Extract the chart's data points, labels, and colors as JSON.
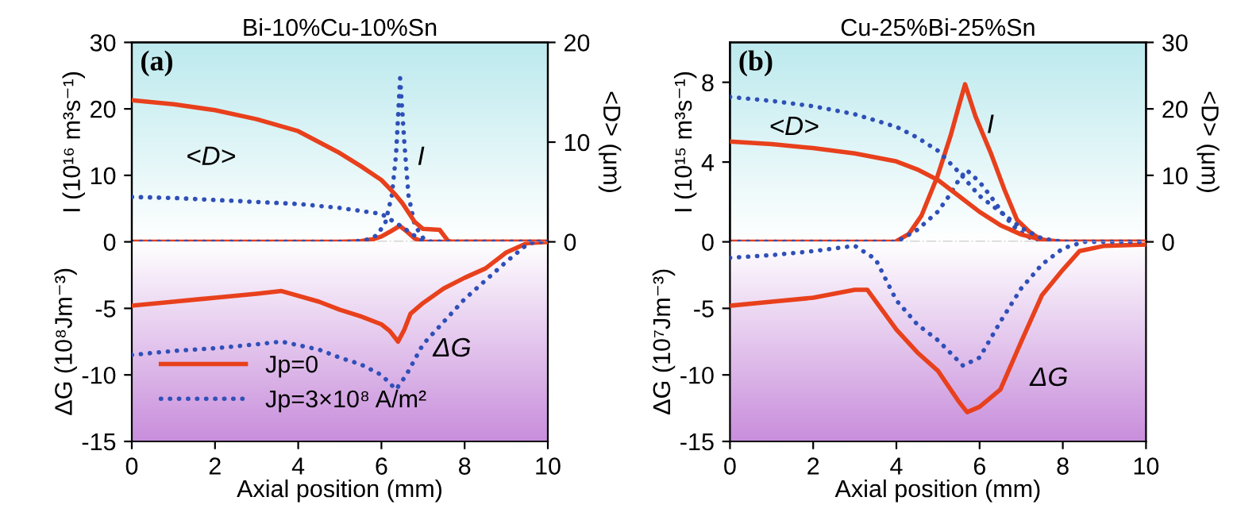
{
  "chart_data": [
    {
      "type": "line",
      "title": "Bi-10%Cu-10%Sn",
      "ylabel": "I (10¹⁶ m³s⁻¹)",
      "y2label": "<D> (μm)",
      "xlim": [
        0,
        10
      ],
      "ylim": [
        0,
        30
      ],
      "yticks": [
        0,
        10,
        20,
        30
      ],
      "y2lim": [
        0,
        20
      ],
      "y2ticks": [
        0,
        10,
        20
      ],
      "tick_labels": "y",
      "marker": "none",
      "ref_lines": [
        {
          "axis": "y",
          "value": 0,
          "color": "#555555"
        }
      ],
      "annotations": [
        "(a)",
        "<D>",
        "I"
      ],
      "series": [
        {
          "color": "#e8401c",
          "line_style": "solid",
          "x": [
            0,
            5.0,
            5.5,
            5.8,
            6.0,
            6.2,
            6.44,
            6.6,
            6.8,
            7.0,
            10
          ],
          "values": [
            0,
            0,
            0.1,
            0.4,
            0.8,
            1.5,
            2.4,
            1.6,
            0.5,
            0,
            0
          ]
        },
        {
          "color": "#2f4fb8",
          "line_style": "dotted",
          "x": [
            0,
            5.2,
            5.6,
            5.9,
            6.1,
            6.25,
            6.35,
            6.45,
            6.55,
            6.65,
            6.8,
            7.0,
            7.2,
            10
          ],
          "values": [
            0,
            0,
            0.2,
            1.0,
            3.0,
            7.0,
            13.0,
            24.6,
            15.0,
            7.0,
            2.5,
            0.6,
            0,
            0
          ]
        },
        {
          "color": "#e8401c",
          "line_style": "solid",
          "axis": "y2",
          "x": [
            0,
            1,
            2,
            3,
            4,
            5,
            5.5,
            6,
            6.3,
            6.5,
            6.8,
            7.0,
            7.4,
            7.6,
            7.7,
            10
          ],
          "values": [
            14.2,
            13.8,
            13.2,
            12.3,
            11.1,
            8.9,
            7.6,
            6.2,
            4.9,
            3.9,
            2.0,
            1.3,
            1.2,
            0.1,
            0,
            0
          ]
        },
        {
          "color": "#2f4fb8",
          "line_style": "dotted",
          "axis": "y2",
          "x": [
            0,
            1,
            2,
            3,
            4,
            5,
            5.5,
            6,
            6.5,
            6.8,
            7.0,
            10
          ],
          "values": [
            4.5,
            4.4,
            4.2,
            4.0,
            3.8,
            3.4,
            3.1,
            2.8,
            1.5,
            0.6,
            0,
            0
          ]
        }
      ]
    },
    {
      "type": "line",
      "xlabel": "Axial position (mm)",
      "ylabel": "ΔG (10⁸Jm⁻³)",
      "xlim": [
        0,
        10
      ],
      "xticks": [
        0,
        2,
        4,
        6,
        8,
        10
      ],
      "ylim": [
        -15,
        0
      ],
      "yticks": [
        -15,
        -10,
        -5
      ],
      "legend": "bottom left",
      "marker": "none",
      "annotations": [
        "ΔG"
      ],
      "series": [
        {
          "name": "Jp=0",
          "color": "#e8401c",
          "line_style": "solid",
          "x": [
            0,
            1,
            2,
            3,
            3.6,
            4.5,
            5,
            5.5,
            6,
            6.2,
            6.4,
            6.55,
            6.7,
            7,
            7.5,
            8,
            8.5,
            9,
            9.5,
            10
          ],
          "values": [
            -4.8,
            -4.5,
            -4.2,
            -3.9,
            -3.7,
            -4.5,
            -5.1,
            -5.6,
            -6.2,
            -6.7,
            -7.5,
            -6.6,
            -5.4,
            -4.6,
            -3.5,
            -2.7,
            -2.0,
            -0.8,
            -0.1,
            0
          ]
        },
        {
          "name": "Jp=3×10⁸ A/m²",
          "color": "#2f4fb8",
          "line_style": "dotted",
          "x": [
            0,
            1,
            2,
            3,
            3.6,
            4.5,
            5,
            5.5,
            6,
            6.35,
            6.6,
            7,
            7.5,
            8,
            8.5,
            9,
            9.5,
            9.7,
            10
          ],
          "values": [
            -8.5,
            -8.2,
            -8.0,
            -7.7,
            -7.5,
            -8.1,
            -8.7,
            -9.2,
            -10.0,
            -11.1,
            -10.0,
            -7.7,
            -6.0,
            -4.3,
            -2.9,
            -1.5,
            -0.2,
            0,
            0
          ]
        }
      ]
    },
    {
      "type": "line",
      "title": "Cu-25%Bi-25%Sn",
      "ylabel": "I (10¹⁵ m³s⁻¹)",
      "y2label": "<D> (μm)",
      "xlim": [
        0,
        10
      ],
      "ylim": [
        0,
        10
      ],
      "yticks": [
        0,
        4,
        8
      ],
      "y2lim": [
        0,
        30
      ],
      "y2ticks": [
        0,
        10,
        20,
        30
      ],
      "tick_labels": "y",
      "marker": "none",
      "ref_lines": [
        {
          "axis": "y",
          "value": 0,
          "color": "#555555"
        }
      ],
      "annotations": [
        "(b)",
        "<D>",
        "I"
      ],
      "series": [
        {
          "color": "#e8401c",
          "line_style": "solid",
          "x": [
            0,
            3.97,
            4.3,
            4.6,
            4.99,
            5.3,
            5.5,
            5.65,
            5.9,
            6.26,
            6.6,
            6.9,
            7.2,
            7.41,
            7.67,
            10
          ],
          "values": [
            0,
            0,
            0.4,
            1.3,
            3.3,
            5.3,
            6.8,
            7.9,
            6.3,
            4.5,
            2.6,
            1.1,
            0.5,
            0.2,
            0,
            0
          ]
        },
        {
          "color": "#2f4fb8",
          "line_style": "dotted",
          "x": [
            0,
            4.0,
            4.5,
            4.99,
            5.3,
            5.5,
            5.69,
            6.0,
            6.26,
            6.6,
            6.9,
            7.3,
            7.6,
            10
          ],
          "values": [
            0,
            0,
            0.6,
            1.5,
            2.4,
            3.1,
            3.6,
            3.0,
            2.3,
            1.3,
            0.6,
            0.1,
            0,
            0
          ]
        },
        {
          "color": "#e8401c",
          "line_style": "solid",
          "axis": "y2",
          "x": [
            0,
            1,
            2,
            3,
            4,
            4.5,
            5,
            5.5,
            6,
            6.5,
            7,
            7.5,
            8,
            10
          ],
          "values": [
            15.1,
            14.7,
            14.1,
            13.3,
            12.1,
            10.9,
            9.3,
            6.9,
            4.5,
            2.5,
            1.1,
            0.3,
            0,
            0
          ]
        },
        {
          "color": "#2f4fb8",
          "line_style": "dotted",
          "axis": "y2",
          "x": [
            0,
            1,
            2,
            3,
            4,
            4.5,
            5,
            5.5,
            6,
            6.5,
            7,
            7.5,
            8,
            10
          ],
          "values": [
            21.8,
            21.2,
            20.4,
            19.2,
            17.3,
            15.7,
            13.7,
            10.5,
            6.9,
            4.5,
            2.1,
            0.5,
            0,
            0
          ]
        }
      ]
    },
    {
      "type": "line",
      "xlabel": "Axial position (mm)",
      "ylabel": "ΔG (10⁷Jm⁻³)",
      "xlim": [
        0,
        10
      ],
      "xticks": [
        0,
        2,
        4,
        6,
        8,
        10
      ],
      "ylim": [
        -15,
        0
      ],
      "yticks": [
        -15,
        -10,
        -5
      ],
      "marker": "none",
      "annotations": [
        "ΔG"
      ],
      "series": [
        {
          "color": "#e8401c",
          "line_style": "solid",
          "x": [
            0,
            1,
            2,
            3,
            3.3,
            4,
            4.5,
            5,
            5.5,
            5.7,
            6,
            6.5,
            7,
            7.5,
            8,
            8.4,
            9,
            10
          ],
          "values": [
            -4.8,
            -4.5,
            -4.2,
            -3.6,
            -3.6,
            -6.6,
            -8.3,
            -9.7,
            -12.0,
            -12.8,
            -12.4,
            -11.1,
            -7.5,
            -4.0,
            -2.1,
            -0.7,
            -0.3,
            -0.2
          ]
        },
        {
          "color": "#2f4fb8",
          "line_style": "dotted",
          "x": [
            0,
            1,
            2,
            3,
            3.5,
            4,
            4.5,
            5,
            5.6,
            6,
            6.5,
            7,
            7.5,
            8,
            8.5,
            10
          ],
          "values": [
            -1.2,
            -1.0,
            -0.7,
            -0.3,
            -1.3,
            -4.4,
            -6.2,
            -7.4,
            -9.3,
            -8.7,
            -6.0,
            -3.5,
            -1.7,
            -0.5,
            0,
            0
          ]
        }
      ]
    }
  ]
}
